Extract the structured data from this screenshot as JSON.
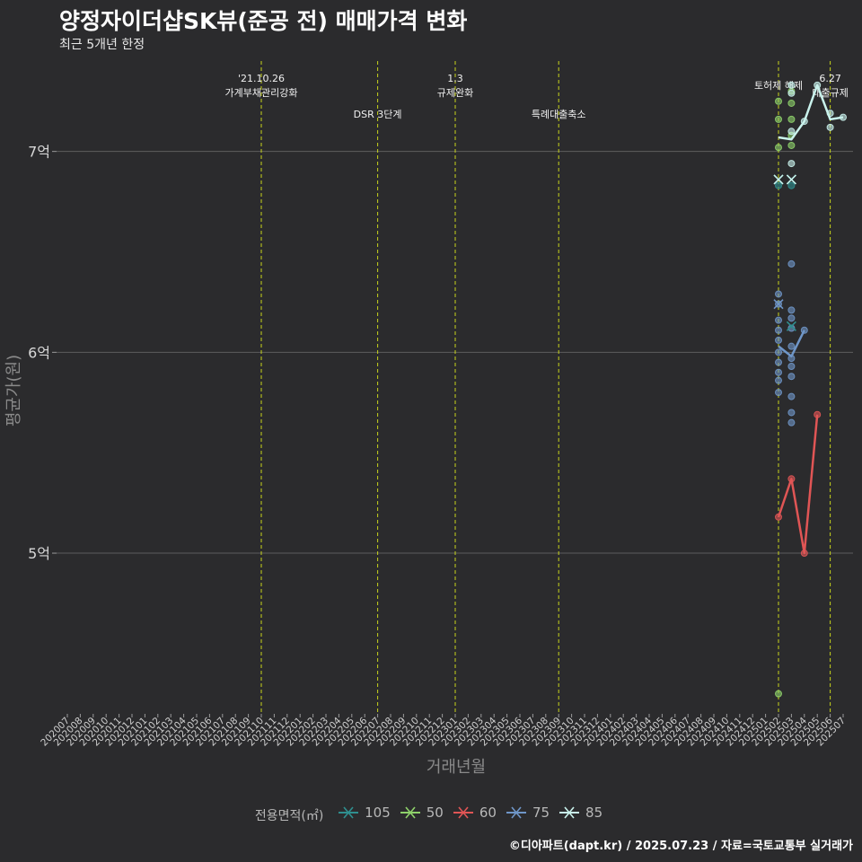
{
  "title": "양정자이더샵SK뷰(준공 전) 매매가격 변화",
  "subtitle": "최근 5개년 한정",
  "caption": "©디아파트(dapt.kr) / 2025.07.23 / 자료=국토교통부 실거래가",
  "colors": {
    "background": "#2b2b2d",
    "grid": "#5e5e5e",
    "event_line": "#c8d41c",
    "s105": "#2f8f8f",
    "s50": "#8ed16a",
    "s60": "#e05555",
    "s75": "#6f96c8",
    "s85": "#c9f2ec"
  },
  "chart_data": {
    "type": "line",
    "xlabel": "거래년월",
    "ylabel": "평균가(원)",
    "ylim": [
      420000000,
      745000000
    ],
    "yticks": [
      {
        "value": 500000000,
        "label": "5억"
      },
      {
        "value": 600000000,
        "label": "6억"
      },
      {
        "value": 700000000,
        "label": "7억"
      }
    ],
    "x_categories": [
      "202007",
      "202008",
      "202009",
      "202010",
      "202011",
      "202012",
      "202101",
      "202102",
      "202103",
      "202104",
      "202105",
      "202106",
      "202107",
      "202108",
      "202109",
      "202110",
      "202111",
      "202112",
      "202201",
      "202202",
      "202203",
      "202204",
      "202205",
      "202206",
      "202207",
      "202208",
      "202209",
      "202210",
      "202211",
      "202212",
      "202301",
      "202302",
      "202303",
      "202304",
      "202305",
      "202306",
      "202307",
      "202308",
      "202309",
      "202310",
      "202311",
      "202312",
      "202401",
      "202402",
      "202403",
      "202404",
      "202405",
      "202406",
      "202407",
      "202408",
      "202409",
      "202410",
      "202411",
      "202412",
      "202501",
      "202502",
      "202503",
      "202504",
      "202505",
      "202506",
      "202507"
    ],
    "events": [
      {
        "month": "202110",
        "text": "'21.10.26\n가계부채관리강화",
        "row": 1
      },
      {
        "month": "202207",
        "text": "DSR 3단계",
        "row": 2
      },
      {
        "month": "202301",
        "text": "1.3\n규제완화",
        "row": 1
      },
      {
        "month": "202309",
        "text": "특례대출축소",
        "row": 2
      },
      {
        "month": "202502",
        "text": "토허제 해제",
        "row": 0
      },
      {
        "month": "202506",
        "text": "6.27\n대출규제",
        "row": 1
      }
    ],
    "legend_title": "전용면적(㎡)",
    "series": [
      {
        "name": "105",
        "color_key": "s105",
        "line": [],
        "points": [
          [
            "202502",
            683000000
          ],
          [
            "202503",
            683000000
          ]
        ]
      },
      {
        "name": "50",
        "color_key": "s50",
        "line": [],
        "points": [
          [
            "202502",
            725000000
          ],
          [
            "202502",
            716000000
          ],
          [
            "202502",
            702000000
          ],
          [
            "202502",
            430000000
          ],
          [
            "202503",
            730000000
          ],
          [
            "202503",
            724000000
          ],
          [
            "202503",
            716000000
          ],
          [
            "202503",
            708000000
          ],
          [
            "202503",
            703000000
          ]
        ]
      },
      {
        "name": "60",
        "color_key": "s60",
        "line": [
          [
            "202502",
            518000000
          ],
          [
            "202503",
            537000000
          ],
          [
            "202504",
            500000000
          ],
          [
            "202505",
            569000000
          ]
        ],
        "points": [
          [
            "202502",
            518000000
          ],
          [
            "202503",
            537000000
          ],
          [
            "202504",
            500000000
          ],
          [
            "202505",
            569000000
          ]
        ]
      },
      {
        "name": "75",
        "color_key": "s75",
        "line": [
          [
            "202502",
            603000000
          ],
          [
            "202503",
            598000000
          ],
          [
            "202504",
            611000000
          ]
        ],
        "points": [
          [
            "202502",
            629000000
          ],
          [
            "202502",
            624000000
          ],
          [
            "202502",
            616000000
          ],
          [
            "202502",
            611000000
          ],
          [
            "202502",
            606000000
          ],
          [
            "202502",
            600000000
          ],
          [
            "202502",
            595000000
          ],
          [
            "202502",
            590000000
          ],
          [
            "202502",
            586000000
          ],
          [
            "202502",
            580000000
          ],
          [
            "202503",
            644000000
          ],
          [
            "202503",
            621000000
          ],
          [
            "202503",
            617000000
          ],
          [
            "202503",
            612000000
          ],
          [
            "202503",
            603000000
          ],
          [
            "202503",
            597000000
          ],
          [
            "202503",
            593000000
          ],
          [
            "202503",
            588000000
          ],
          [
            "202503",
            578000000
          ],
          [
            "202503",
            570000000
          ],
          [
            "202503",
            565000000
          ],
          [
            "202504",
            611000000
          ]
        ]
      },
      {
        "name": "85",
        "color_key": "s85",
        "line": [
          [
            "202502",
            707000000
          ],
          [
            "202503",
            706000000
          ],
          [
            "202504",
            715000000
          ],
          [
            "202505",
            733000000
          ],
          [
            "202506",
            716000000
          ],
          [
            "202507",
            717000000
          ]
        ],
        "points": [
          [
            "202503",
            733000000
          ],
          [
            "202503",
            729000000
          ],
          [
            "202503",
            710000000
          ],
          [
            "202503",
            694000000
          ],
          [
            "202504",
            715000000
          ],
          [
            "202505",
            733000000
          ],
          [
            "202506",
            719000000
          ],
          [
            "202506",
            712000000
          ],
          [
            "202507",
            717000000
          ]
        ]
      }
    ],
    "x_markers": [
      {
        "month": "202502",
        "value": 686000000,
        "color_key": "s105"
      },
      {
        "month": "202503",
        "value": 686000000,
        "color_key": "s105"
      },
      {
        "month": "202502",
        "value": 686000000,
        "color_key": "s85"
      },
      {
        "month": "202503",
        "value": 686000000,
        "color_key": "s85"
      },
      {
        "month": "202502",
        "value": 624000000,
        "color_key": "s75"
      },
      {
        "month": "202503",
        "value": 613000000,
        "color_key": "s105"
      }
    ]
  }
}
